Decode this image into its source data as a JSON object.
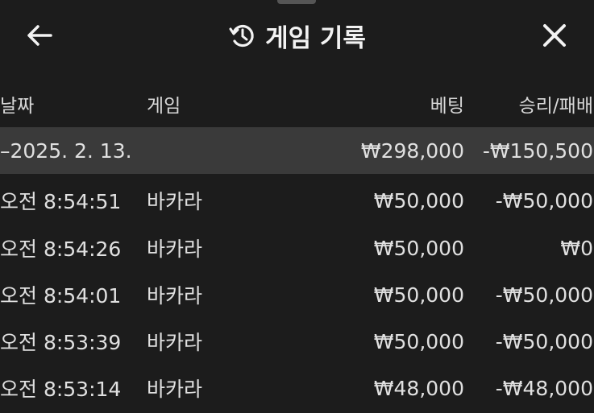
{
  "header": {
    "title": "게임 기록",
    "back_icon": "arrow-left-icon",
    "history_icon": "history-icon",
    "close_icon": "close-icon"
  },
  "columns": {
    "date": "날짜",
    "game": "게임",
    "bet": "베팅",
    "result": "승리/패배"
  },
  "group": {
    "date": "–2025. 2. 13.",
    "bet": "₩298,000",
    "result": "-₩150,500"
  },
  "rows": [
    {
      "time": "오전 8:54:51",
      "game": "바카라",
      "bet": "₩50,000",
      "result": "-₩50,000"
    },
    {
      "time": "오전 8:54:26",
      "game": "바카라",
      "bet": "₩50,000",
      "result": "₩0"
    },
    {
      "time": "오전 8:54:01",
      "game": "바카라",
      "bet": "₩50,000",
      "result": "-₩50,000"
    },
    {
      "time": "오전 8:53:39",
      "game": "바카라",
      "bet": "₩50,000",
      "result": "-₩50,000"
    },
    {
      "time": "오전 8:53:14",
      "game": "바카라",
      "bet": "₩48,000",
      "result": "-₩48,000"
    }
  ],
  "colors": {
    "background": "#1c1c1c",
    "group_row": "#3a3a3a",
    "text": "#e0e0e0"
  }
}
